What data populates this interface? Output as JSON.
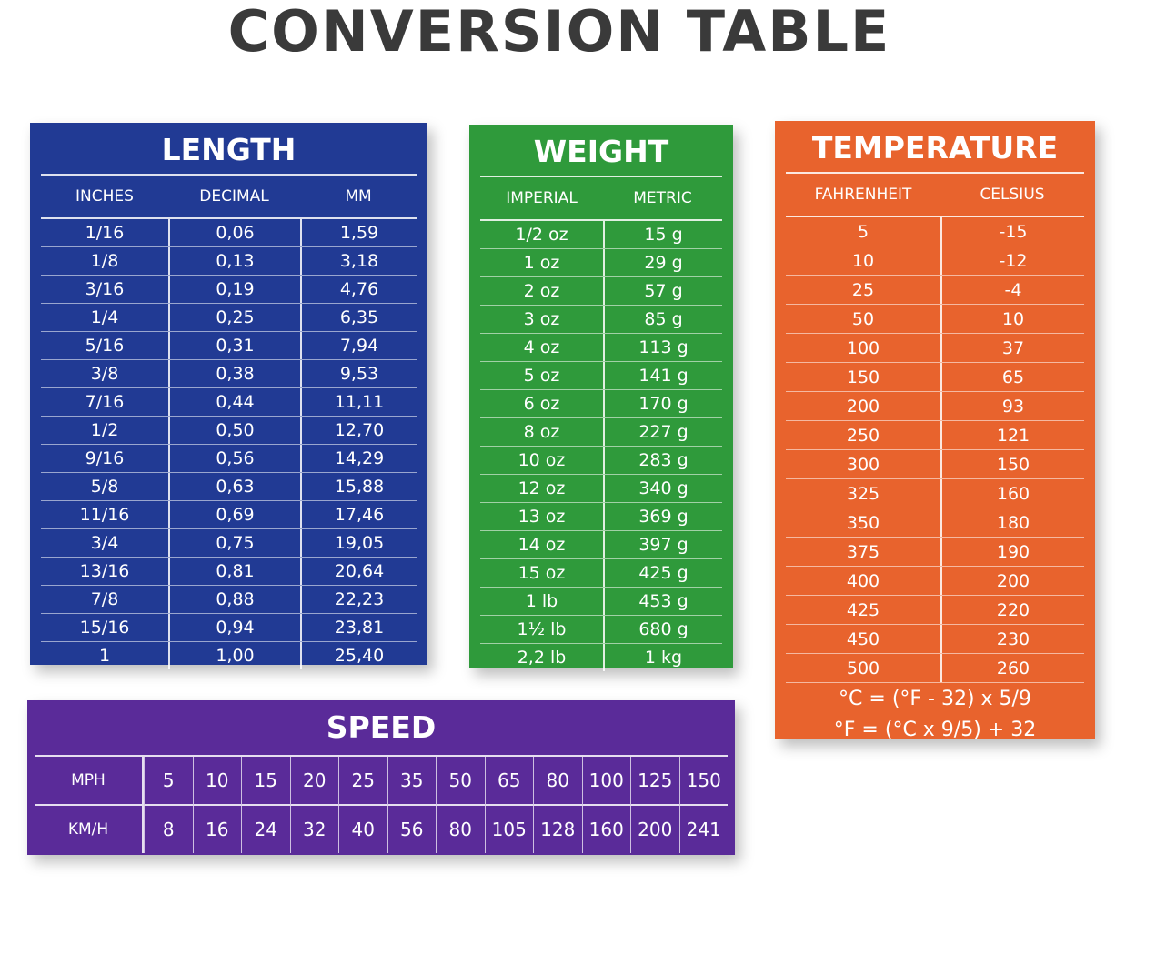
{
  "title": "CONVERSION TABLE",
  "length": {
    "title": "LENGTH",
    "headers": [
      "INCHES",
      "DECIMAL",
      "MM"
    ],
    "rows": [
      [
        "1/16",
        "0,06",
        "1,59"
      ],
      [
        "1/8",
        "0,13",
        "3,18"
      ],
      [
        "3/16",
        "0,19",
        "4,76"
      ],
      [
        "1/4",
        "0,25",
        "6,35"
      ],
      [
        "5/16",
        "0,31",
        "7,94"
      ],
      [
        "3/8",
        "0,38",
        "9,53"
      ],
      [
        "7/16",
        "0,44",
        "11,11"
      ],
      [
        "1/2",
        "0,50",
        "12,70"
      ],
      [
        "9/16",
        "0,56",
        "14,29"
      ],
      [
        "5/8",
        "0,63",
        "15,88"
      ],
      [
        "11/16",
        "0,69",
        "17,46"
      ],
      [
        "3/4",
        "0,75",
        "19,05"
      ],
      [
        "13/16",
        "0,81",
        "20,64"
      ],
      [
        "7/8",
        "0,88",
        "22,23"
      ],
      [
        "15/16",
        "0,94",
        "23,81"
      ],
      [
        "1",
        "1,00",
        "25,40"
      ]
    ]
  },
  "weight": {
    "title": "WEIGHT",
    "headers": [
      "IMPERIAL",
      "METRIC"
    ],
    "rows": [
      [
        "1/2 oz",
        "15 g"
      ],
      [
        "1 oz",
        "29 g"
      ],
      [
        "2 oz",
        "57 g"
      ],
      [
        "3 oz",
        "85 g"
      ],
      [
        "4 oz",
        "113 g"
      ],
      [
        "5 oz",
        "141 g"
      ],
      [
        "6 oz",
        "170 g"
      ],
      [
        "8 oz",
        "227 g"
      ],
      [
        "10 oz",
        "283 g"
      ],
      [
        "12 oz",
        "340 g"
      ],
      [
        "13 oz",
        "369 g"
      ],
      [
        "14 oz",
        "397 g"
      ],
      [
        "15 oz",
        "425 g"
      ],
      [
        "1 lb",
        "453 g"
      ],
      [
        "1½ lb",
        "680 g"
      ],
      [
        "2,2 lb",
        "1 kg"
      ]
    ]
  },
  "temperature": {
    "title": "TEMPERATURE",
    "headers": [
      "FAHRENHEIT",
      "CELSIUS"
    ],
    "rows": [
      [
        "5",
        "-15"
      ],
      [
        "10",
        "-12"
      ],
      [
        "25",
        "-4"
      ],
      [
        "50",
        "10"
      ],
      [
        "100",
        "37"
      ],
      [
        "150",
        "65"
      ],
      [
        "200",
        "93"
      ],
      [
        "250",
        "121"
      ],
      [
        "300",
        "150"
      ],
      [
        "325",
        "160"
      ],
      [
        "350",
        "180"
      ],
      [
        "375",
        "190"
      ],
      [
        "400",
        "200"
      ],
      [
        "425",
        "220"
      ],
      [
        "450",
        "230"
      ],
      [
        "500",
        "260"
      ]
    ],
    "formulas": [
      "°C = (°F - 32) x 5/9",
      "°F = (°C x 9/5) + 32"
    ]
  },
  "speed": {
    "title": "SPEED",
    "rows": [
      {
        "label": "MPH",
        "values": [
          "5",
          "10",
          "15",
          "20",
          "25",
          "35",
          "50",
          "65",
          "80",
          "100",
          "125",
          "150"
        ]
      },
      {
        "label": "KM/H",
        "values": [
          "8",
          "16",
          "24",
          "32",
          "40",
          "56",
          "80",
          "105",
          "128",
          "160",
          "200",
          "241"
        ]
      }
    ]
  }
}
